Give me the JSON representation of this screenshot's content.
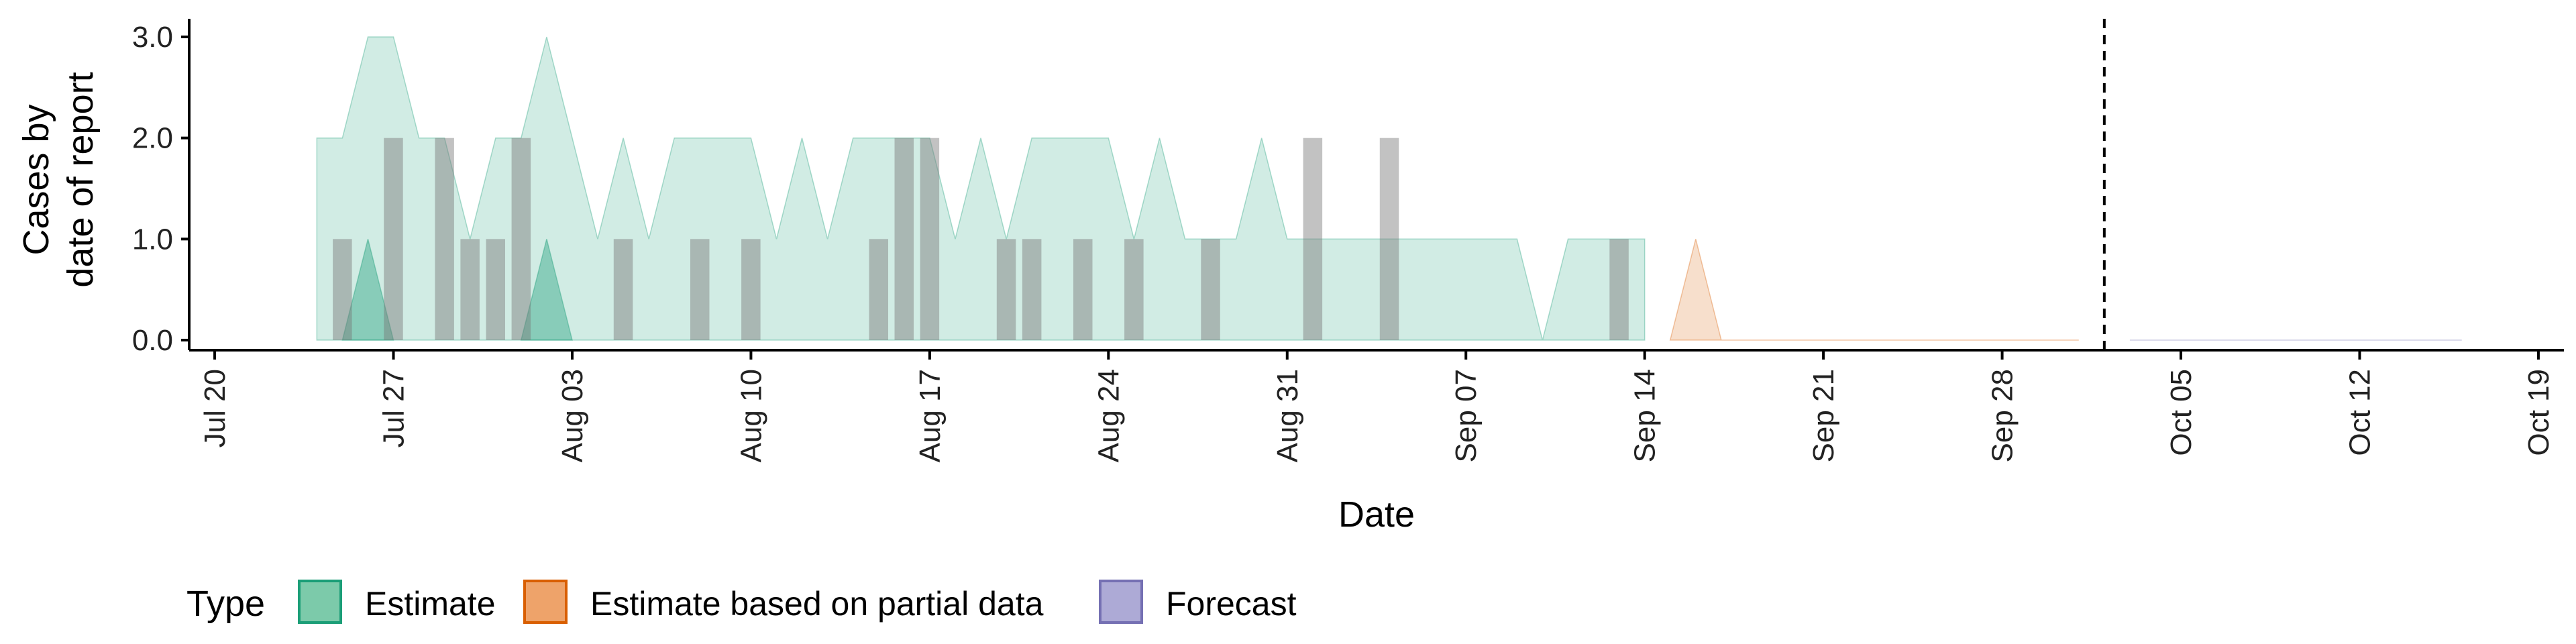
{
  "chart_data": {
    "type": "area",
    "xlabel": "Date",
    "ylabel_lines": [
      "Cases by",
      "date of report"
    ],
    "ylim": [
      0,
      3.15
    ],
    "y_ticks": [
      {
        "value": 0,
        "label": "0.0"
      },
      {
        "value": 1,
        "label": "1.0"
      },
      {
        "value": 2,
        "label": "2.0"
      },
      {
        "value": 3,
        "label": "3.0"
      }
    ],
    "x_range": [
      "2020-07-19",
      "2020-10-20"
    ],
    "x_ticks": [
      {
        "date": "2020-07-20",
        "label": "Jul 20"
      },
      {
        "date": "2020-07-27",
        "label": "Jul 27"
      },
      {
        "date": "2020-08-03",
        "label": "Aug 03"
      },
      {
        "date": "2020-08-10",
        "label": "Aug 10"
      },
      {
        "date": "2020-08-17",
        "label": "Aug 17"
      },
      {
        "date": "2020-08-24",
        "label": "Aug 24"
      },
      {
        "date": "2020-08-31",
        "label": "Aug 31"
      },
      {
        "date": "2020-09-07",
        "label": "Sep 07"
      },
      {
        "date": "2020-09-14",
        "label": "Sep 14"
      },
      {
        "date": "2020-09-21",
        "label": "Sep 21"
      },
      {
        "date": "2020-09-28",
        "label": "Sep 28"
      },
      {
        "date": "2020-10-05",
        "label": "Oct 05"
      },
      {
        "date": "2020-10-12",
        "label": "Oct 12"
      },
      {
        "date": "2020-10-19",
        "label": "Oct 19"
      }
    ],
    "vline_date": "2020-10-02",
    "colors": {
      "estimate": "#1b9e77",
      "partial": "#d95f02",
      "forecast": "#7570b3",
      "bars": "#777777"
    },
    "estimate_band_outer": {
      "dates": [
        "2020-07-24",
        "2020-07-25",
        "2020-07-26",
        "2020-07-27",
        "2020-07-28",
        "2020-07-29",
        "2020-07-30",
        "2020-07-31",
        "2020-08-01",
        "2020-08-02",
        "2020-08-03",
        "2020-08-04",
        "2020-08-05",
        "2020-08-06",
        "2020-08-07",
        "2020-08-08",
        "2020-08-09",
        "2020-08-10",
        "2020-08-11",
        "2020-08-12",
        "2020-08-13",
        "2020-08-14",
        "2020-08-15",
        "2020-08-16",
        "2020-08-17",
        "2020-08-18",
        "2020-08-19",
        "2020-08-20",
        "2020-08-21",
        "2020-08-22",
        "2020-08-23",
        "2020-08-24",
        "2020-08-25",
        "2020-08-26",
        "2020-08-27",
        "2020-08-28",
        "2020-08-29",
        "2020-08-30",
        "2020-08-31",
        "2020-09-01",
        "2020-09-02",
        "2020-09-03",
        "2020-09-04",
        "2020-09-05",
        "2020-09-06",
        "2020-09-07",
        "2020-09-08",
        "2020-09-09",
        "2020-09-10",
        "2020-09-11",
        "2020-09-12",
        "2020-09-13",
        "2020-09-14"
      ],
      "upper": [
        2,
        2,
        3,
        3,
        2,
        2,
        1,
        2,
        2,
        3,
        2,
        1,
        2,
        1,
        2,
        2,
        2,
        2,
        1,
        2,
        1,
        2,
        2,
        2,
        2,
        1,
        2,
        1,
        2,
        2,
        2,
        2,
        1,
        2,
        1,
        1,
        1,
        2,
        1,
        1,
        1,
        1,
        1,
        1,
        1,
        1,
        1,
        1,
        0,
        1,
        1,
        1,
        1
      ],
      "lower": [
        0,
        0,
        0,
        0,
        0,
        0,
        0,
        0,
        0,
        0,
        0,
        0,
        0,
        0,
        0,
        0,
        0,
        0,
        0,
        0,
        0,
        0,
        0,
        0,
        0,
        0,
        0,
        0,
        0,
        0,
        0,
        0,
        0,
        0,
        0,
        0,
        0,
        0,
        0,
        0,
        0,
        0,
        0,
        0,
        0,
        0,
        0,
        0,
        0,
        0,
        0,
        0,
        0
      ]
    },
    "estimate_band_inner": [
      {
        "dates": [
          "2020-07-25",
          "2020-07-26",
          "2020-07-27"
        ],
        "upper": [
          0,
          1,
          0
        ],
        "lower": [
          0,
          0,
          0
        ]
      },
      {
        "dates": [
          "2020-08-01",
          "2020-08-02",
          "2020-08-03"
        ],
        "upper": [
          0,
          1,
          0
        ],
        "lower": [
          0,
          0,
          0
        ]
      }
    ],
    "partial_band": {
      "dates": [
        "2020-09-15",
        "2020-09-16",
        "2020-09-17",
        "2020-10-01"
      ],
      "upper": [
        0,
        1,
        0,
        0
      ],
      "lower": [
        0,
        0,
        0,
        0
      ]
    },
    "forecast_band": {
      "dates": [
        "2020-10-03",
        "2020-10-16"
      ],
      "upper": [
        0,
        0
      ],
      "lower": [
        0,
        0
      ]
    },
    "reported_cases": [
      {
        "date": "2020-07-25",
        "value": 1
      },
      {
        "date": "2020-07-27",
        "value": 2
      },
      {
        "date": "2020-07-29",
        "value": 2
      },
      {
        "date": "2020-07-30",
        "value": 1
      },
      {
        "date": "2020-07-31",
        "value": 1
      },
      {
        "date": "2020-08-01",
        "value": 2
      },
      {
        "date": "2020-08-05",
        "value": 1
      },
      {
        "date": "2020-08-08",
        "value": 1
      },
      {
        "date": "2020-08-10",
        "value": 1
      },
      {
        "date": "2020-08-15",
        "value": 1
      },
      {
        "date": "2020-08-16",
        "value": 2
      },
      {
        "date": "2020-08-17",
        "value": 2
      },
      {
        "date": "2020-08-20",
        "value": 1
      },
      {
        "date": "2020-08-21",
        "value": 1
      },
      {
        "date": "2020-08-23",
        "value": 1
      },
      {
        "date": "2020-08-25",
        "value": 1
      },
      {
        "date": "2020-08-28",
        "value": 1
      },
      {
        "date": "2020-09-01",
        "value": 2
      },
      {
        "date": "2020-09-04",
        "value": 2
      },
      {
        "date": "2020-09-13",
        "value": 1
      }
    ],
    "legend": {
      "title": "Type",
      "items": [
        {
          "label": "Estimate",
          "fill": "#7ccaaa",
          "stroke": "#1b9e77"
        },
        {
          "label": "Estimate based on partial data",
          "fill": "#eea36a",
          "stroke": "#d95f02"
        },
        {
          "label": "Forecast",
          "fill": "#adaad6",
          "stroke": "#7570b3"
        }
      ]
    }
  }
}
